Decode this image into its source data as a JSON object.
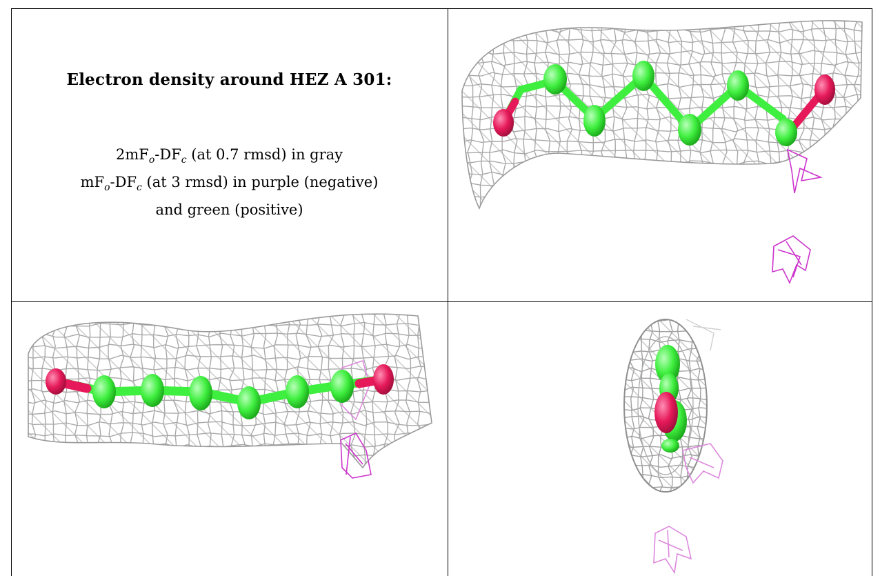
{
  "caption": {
    "title": "Electron density around HEZ A 301:",
    "line1_a": "2mF",
    "line1_sub1": "o",
    "line1_b": "-DF",
    "line1_sub2": "c",
    "line1_c": " (at 0.7 rmsd) in gray",
    "line2_a": "mF",
    "line2_sub1": "o",
    "line2_b": "-DF",
    "line2_sub2": "c",
    "line2_c": " (at 3 rmsd) in purple (negative)",
    "line3": "and green (positive)"
  },
  "colors": {
    "mesh_gray": "#a9a9a9",
    "carbon_green": "#3fef3f",
    "oxygen_red": "#e6195a",
    "negative_purple": "#cc33cc",
    "negative_light": "#dd88dd"
  },
  "panels": [
    {
      "view": "top-right",
      "ligand": "HEZ A 301"
    },
    {
      "view": "bottom-left",
      "ligand": "HEZ A 301"
    },
    {
      "view": "bottom-right",
      "ligand": "HEZ A 301"
    }
  ]
}
